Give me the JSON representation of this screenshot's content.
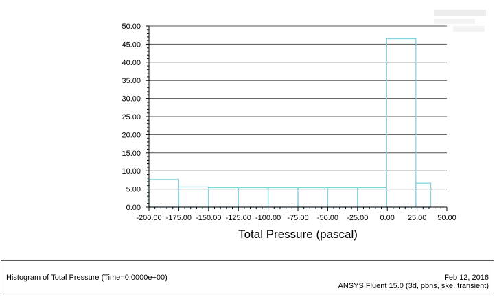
{
  "chart_data": {
    "type": "bar",
    "title": "",
    "xlabel": "Total Pressure (pascal)",
    "ylabel": "",
    "xlim": [
      -200,
      50
    ],
    "ylim": [
      0,
      50
    ],
    "x_ticks": [
      -200,
      -175,
      -150,
      -125,
      -100,
      -75,
      -50,
      -25,
      0,
      25,
      50
    ],
    "y_ticks": [
      0,
      5,
      10,
      15,
      20,
      25,
      30,
      35,
      40,
      45,
      50
    ],
    "x_tick_labels": [
      "-200.00",
      "-175.00",
      "-150.00",
      "-125.00",
      "-100.00",
      "-75.00",
      "-50.00",
      "-25.00",
      "0.00",
      "25.00",
      "50.00"
    ],
    "y_tick_labels": [
      "0.00",
      "5.00",
      "10.00",
      "15.00",
      "20.00",
      "25.00",
      "30.00",
      "35.00",
      "40.00",
      "45.00",
      "50.00"
    ],
    "bins": [
      {
        "start": -200,
        "end": -175,
        "value": 7.6
      },
      {
        "start": -175,
        "end": -150,
        "value": 5.6
      },
      {
        "start": -150,
        "end": -125,
        "value": 5.4
      },
      {
        "start": -125,
        "end": -100,
        "value": 5.4
      },
      {
        "start": -100,
        "end": -75,
        "value": 5.4
      },
      {
        "start": -75,
        "end": -50,
        "value": 5.4
      },
      {
        "start": -50,
        "end": -25,
        "value": 5.4
      },
      {
        "start": -25,
        "end": -0.5,
        "value": 5.4
      },
      {
        "start": -0.5,
        "end": 24,
        "value": 46.5
      },
      {
        "start": 24,
        "end": 36.5,
        "value": 6.6
      }
    ],
    "grid": true,
    "bar_color": "#7fd4e0"
  },
  "footer": {
    "title": "Histogram of Total Pressure  (Time=0.0000e+00)",
    "date": "Feb 12, 2016",
    "product": "ANSYS Fluent 15.0 (3d, pbns, ske, transient)"
  }
}
